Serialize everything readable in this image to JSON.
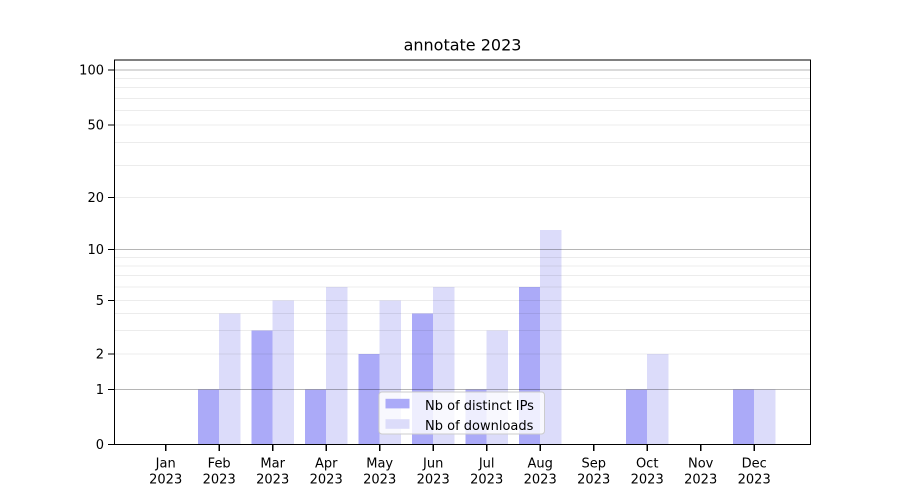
{
  "window": {
    "background": "#ffffff"
  },
  "chart_data": {
    "type": "bar",
    "title": "annotate 2023",
    "xlabel": "",
    "ylabel": "",
    "categories": [
      "Jan",
      "Feb",
      "Mar",
      "Apr",
      "May",
      "Jun",
      "Jul",
      "Aug",
      "Sep",
      "Oct",
      "Nov",
      "Dec"
    ],
    "year_label": "2023",
    "series": [
      {
        "name": "Nb of distinct IPs",
        "color": "#abaaf8",
        "values": [
          0,
          1,
          3,
          1,
          2,
          4,
          1,
          6,
          0,
          1,
          0,
          1
        ]
      },
      {
        "name": "Nb of downloads",
        "color": "#dcdcfa",
        "values": [
          0,
          4,
          5,
          6,
          5,
          6,
          3,
          13,
          0,
          2,
          0,
          1
        ]
      }
    ],
    "yscale": "symlog (linear 0-1, logarithmic above 1)",
    "ylim": [
      0,
      110
    ],
    "y_ticks": [
      0,
      1,
      2,
      5,
      10,
      20,
      50,
      100
    ],
    "y_major_gridlines": [
      1,
      10,
      100
    ],
    "y_minor_gridlines": [
      2,
      3,
      4,
      5,
      6,
      7,
      8,
      9,
      20,
      30,
      40,
      50,
      60,
      70,
      80,
      90
    ],
    "grid": true,
    "legend_position": "inside lower-center",
    "colors": {
      "major_grid": "rgba(0,0,0,0.29)",
      "minor_grid": "rgba(0,0,0,0.075)",
      "spine": "#000000",
      "legend_border": "#cccccc",
      "legend_background": "rgba(255,255,255,0.8)"
    }
  }
}
